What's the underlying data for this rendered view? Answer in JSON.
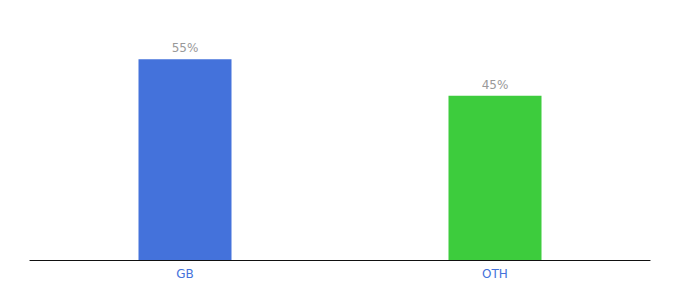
{
  "chart_data": {
    "type": "bar",
    "categories": [
      "GB",
      "OTH"
    ],
    "values": [
      55,
      45
    ],
    "value_labels": [
      "55%",
      "45%"
    ],
    "colors": [
      "#4472db",
      "#3dcc3d"
    ],
    "ylim": [
      0,
      63
    ],
    "data_labels": true,
    "tick_labels": "x",
    "grid": false
  }
}
